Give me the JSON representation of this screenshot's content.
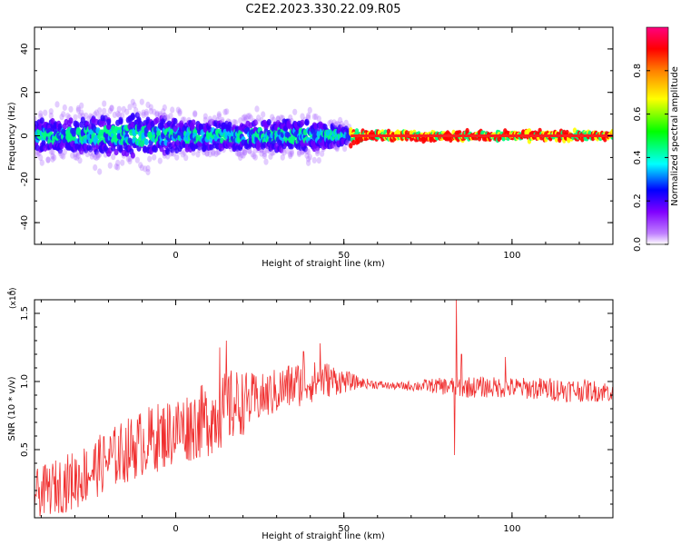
{
  "title": "C2E2.2023.330.22.09.R05",
  "chart_data": [
    {
      "type": "heatmap",
      "xlabel": "Height of straight line (km)",
      "ylabel": "Frequency (Hz)",
      "xlim": [
        -42,
        130
      ],
      "ylim": [
        -50,
        50
      ],
      "xticks": [
        0,
        50,
        100
      ],
      "yticks": [
        -40,
        -20,
        0,
        20,
        40
      ],
      "colorbar": {
        "label": "Normalized spectral amplitude",
        "range": [
          0,
          1
        ],
        "ticks": [
          "0.0",
          "0.2",
          "0.4",
          "0.6",
          "0.8"
        ],
        "colormap": [
          "#ffffff",
          "#8000ff",
          "#0000ff",
          "#00ffff",
          "#00ff00",
          "#ffff00",
          "#ff8000",
          "#ff0000",
          "#ff0080"
        ]
      },
      "spread_hz": [
        {
          "x": -42,
          "value": 12
        },
        {
          "x": -30,
          "value": 12
        },
        {
          "x": -20,
          "value": 14
        },
        {
          "x": -10,
          "value": 16
        },
        {
          "x": 0,
          "value": 12
        },
        {
          "x": 10,
          "value": 10
        },
        {
          "x": 20,
          "value": 10
        },
        {
          "x": 30,
          "value": 11
        },
        {
          "x": 40,
          "value": 11
        },
        {
          "x": 50,
          "value": 6
        },
        {
          "x": 55,
          "value": 2
        },
        {
          "x": 130,
          "value": 2
        }
      ]
    },
    {
      "type": "line",
      "xlabel": "Height of straight line (km)",
      "ylabel": "SNR (10 * v/v)",
      "exponent_label": "(x10",
      "exponent_power": "4",
      "exponent_close": ")",
      "xlim": [
        -42,
        130
      ],
      "ylim": [
        0,
        1.6
      ],
      "xticks": [
        0,
        50,
        100
      ],
      "yticks": [
        0.5,
        1.0,
        1.5
      ],
      "ytick_labels": [
        "0.5",
        "1.0",
        "1.5"
      ],
      "color": "#f03030",
      "envelope": [
        {
          "x": -42,
          "low": 0.0,
          "high": 0.35
        },
        {
          "x": -30,
          "low": 0.05,
          "high": 0.5
        },
        {
          "x": -20,
          "low": 0.2,
          "high": 0.65
        },
        {
          "x": -10,
          "low": 0.3,
          "high": 0.8
        },
        {
          "x": 0,
          "low": 0.38,
          "high": 0.9
        },
        {
          "x": 10,
          "low": 0.45,
          "high": 1.0
        },
        {
          "x": 17,
          "low": 0.55,
          "high": 1.1
        },
        {
          "x": 25,
          "low": 0.7,
          "high": 1.05
        },
        {
          "x": 35,
          "low": 0.8,
          "high": 1.15
        },
        {
          "x": 45,
          "low": 0.88,
          "high": 1.15
        },
        {
          "x": 55,
          "low": 0.95,
          "high": 1.03
        },
        {
          "x": 65,
          "low": 0.94,
          "high": 0.99
        },
        {
          "x": 75,
          "low": 0.92,
          "high": 1.02
        },
        {
          "x": 85,
          "low": 0.88,
          "high": 1.04
        },
        {
          "x": 100,
          "low": 0.88,
          "high": 1.03
        },
        {
          "x": 115,
          "low": 0.85,
          "high": 1.03
        },
        {
          "x": 130,
          "low": 0.85,
          "high": 1.0
        }
      ],
      "spikes": [
        {
          "x": 13,
          "value": 1.25
        },
        {
          "x": 15,
          "value": 1.3
        },
        {
          "x": 17,
          "value": 1.44
        },
        {
          "x": 17,
          "value": 0.6
        },
        {
          "x": 38,
          "value": 1.22
        },
        {
          "x": 43,
          "value": 1.28
        },
        {
          "x": 83,
          "value": 0.46
        },
        {
          "x": 83.5,
          "value": 1.6
        },
        {
          "x": 85,
          "value": 1.2
        },
        {
          "x": 98,
          "value": 1.18
        },
        {
          "x": 127,
          "value": 0.95
        }
      ]
    }
  ]
}
